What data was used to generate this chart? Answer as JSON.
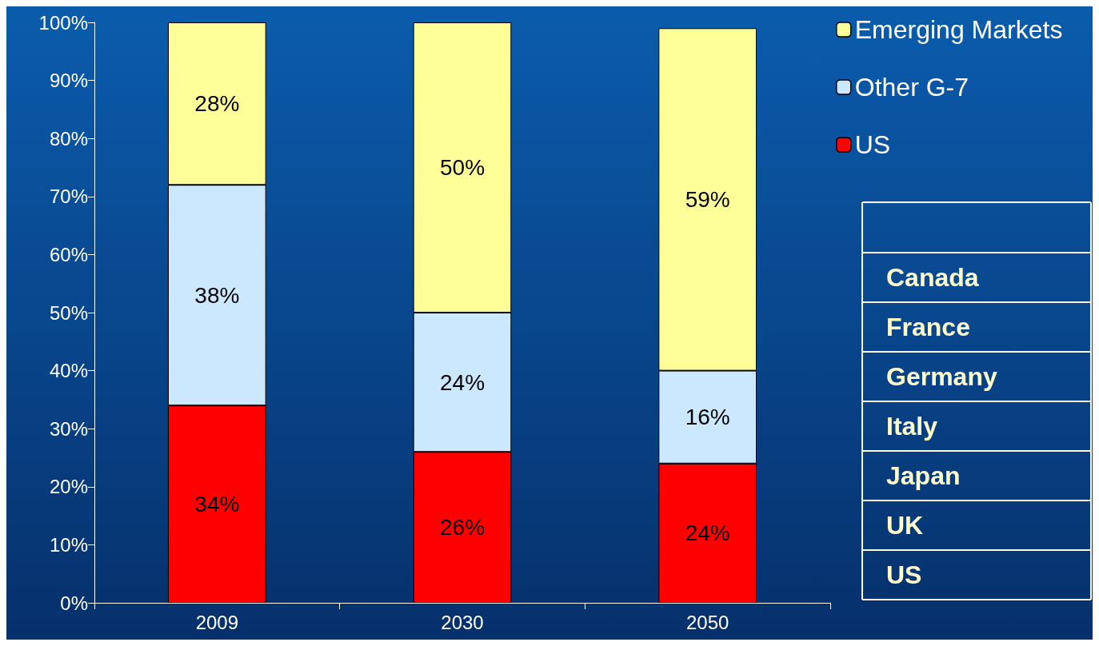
{
  "chart_data": {
    "type": "bar",
    "stacked": true,
    "categories": [
      "2009",
      "2030",
      "2050"
    ],
    "series": [
      {
        "name": "US",
        "color": "#ff0000",
        "values": [
          34,
          26,
          24
        ],
        "value_labels": [
          "34%",
          "26%",
          "24%"
        ]
      },
      {
        "name": "Other G-7",
        "color": "#cce8ff",
        "values": [
          38,
          24,
          16
        ],
        "value_labels": [
          "38%",
          "24%",
          "16%"
        ]
      },
      {
        "name": "Emerging Markets",
        "color": "#ffff99",
        "values": [
          28,
          50,
          59
        ],
        "value_labels": [
          "28%",
          "50%",
          "59%"
        ]
      }
    ],
    "ylim": [
      0,
      100
    ],
    "yticks": [
      {
        "value": 0,
        "label": "0%"
      },
      {
        "value": 10,
        "label": "10%"
      },
      {
        "value": 20,
        "label": "20%"
      },
      {
        "value": 30,
        "label": "30%"
      },
      {
        "value": 40,
        "label": "40%"
      },
      {
        "value": 50,
        "label": "50%"
      },
      {
        "value": 60,
        "label": "60%"
      },
      {
        "value": 70,
        "label": "70%"
      },
      {
        "value": 80,
        "label": "80%"
      },
      {
        "value": 90,
        "label": "90%"
      },
      {
        "value": 100,
        "label": "100%"
      }
    ],
    "grid": false,
    "legend": "top right",
    "annotations": [
      "Canada",
      "France",
      "Germany",
      "Italy",
      "Japan",
      "UK",
      "US"
    ]
  }
}
